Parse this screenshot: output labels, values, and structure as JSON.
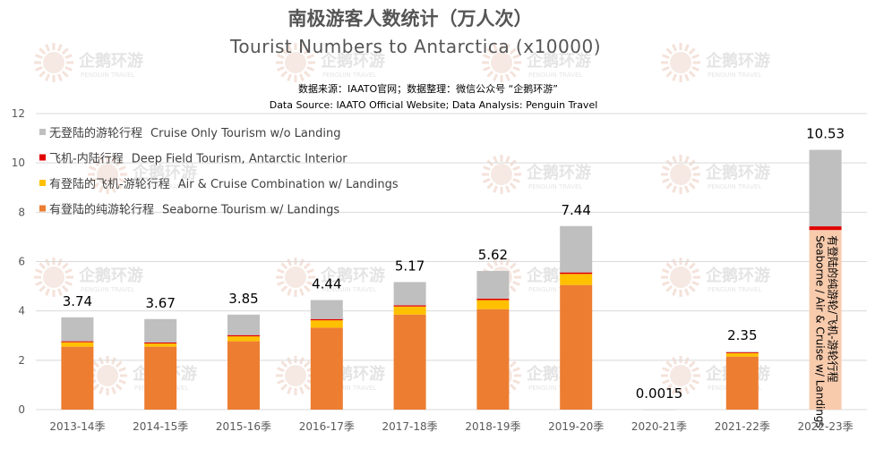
{
  "title_cn": "南极游客人数统计（万人次）",
  "title_en": "Tourist Numbers to Antarctica (x10000)",
  "source_cn": "数据来源：IAATO官网；数据整理：微信公众号 “企鹅环游”",
  "source_en": "Data Source: IAATO Official Website; Data Analysis: Penguin Travel",
  "watermark": {
    "brand_cn": "企鹅环游",
    "brand_en": "PENGUIN TRAVEL"
  },
  "colors": {
    "seaborne": "#ed7d31",
    "air_cruise": "#ffc000",
    "deep_field": "#e00000",
    "cruise_only": "#bfbfbf",
    "highlight_label_bg": "#f8cbad",
    "grid": "#d9d9d9"
  },
  "chart_data": {
    "type": "bar",
    "stacked": true,
    "categories": [
      "2013-14季",
      "2014-15季",
      "2015-16季",
      "2016-17季",
      "2017-18季",
      "2018-19季",
      "2019-20季",
      "2020-21季",
      "2021-22季",
      "2022-23季"
    ],
    "series": [
      {
        "key": "seaborne",
        "name": "有登陆的纯游轮行程",
        "name_en": "Seaborne Tourism w/ Landings",
        "values": [
          2.55,
          2.55,
          2.77,
          3.32,
          3.85,
          4.07,
          5.05,
          0,
          2.15,
          7.28
        ]
      },
      {
        "key": "air_cruise",
        "name": "有登陆的飞机-游轮行程",
        "name_en": "Air & Cruise Combination w/ Landings",
        "values": [
          0.18,
          0.13,
          0.2,
          0.3,
          0.33,
          0.37,
          0.45,
          0,
          0.14,
          0
        ]
      },
      {
        "key": "deep_field",
        "name": "飞机-内陆行程",
        "name_en": "Deep Field Tourism, Antarctic Interior",
        "values": [
          0.04,
          0.04,
          0.05,
          0.05,
          0.05,
          0.06,
          0.06,
          0,
          0.03,
          0.15
        ]
      },
      {
        "key": "cruise_only",
        "name": "无登陆的游轮行程",
        "name_en": "Cruise Only Tourism w/o Landing",
        "values": [
          0.97,
          0.95,
          0.83,
          0.77,
          0.94,
          1.12,
          1.88,
          0.0015,
          0.03,
          3.1
        ]
      }
    ],
    "totals": [
      "3.74",
      "3.67",
      "3.85",
      "4.44",
      "5.17",
      "5.62",
      "7.44",
      "0.0015",
      "2.35",
      "10.53"
    ],
    "ylim": [
      0,
      12
    ],
    "yticks": [
      0,
      2,
      4,
      6,
      8,
      10,
      12
    ],
    "grid": true,
    "legend_position": "top-left",
    "legend_order": [
      "cruise_only",
      "deep_field",
      "air_cruise",
      "seaborne"
    ],
    "annotation": {
      "category": "2022-23季",
      "text_cn": "有登陆的纯游轮/飞机-游轮行程",
      "text_en": "Seaborne / Air & Cruise w/ Landings"
    }
  }
}
